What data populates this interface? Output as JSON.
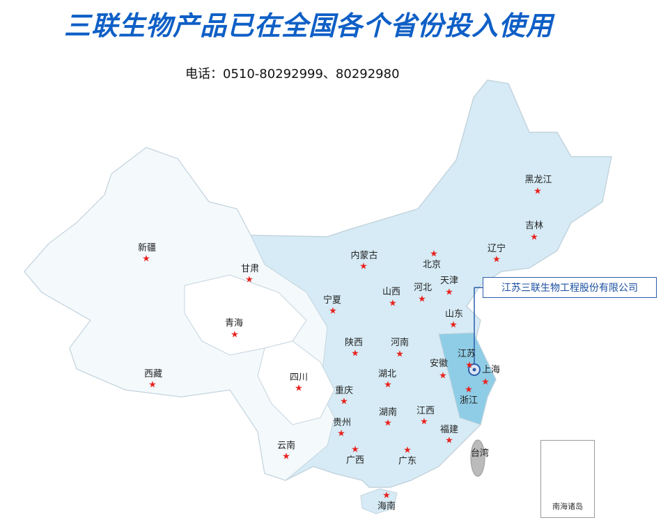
{
  "title": "三联生物产品已在全国各个省份投入使用",
  "phone": "电话：0510-80292999、80292980",
  "callout": "江苏三联生物工程股份有限公司",
  "inset_label": "南海诸岛",
  "colors": {
    "title": "#0f5fc6",
    "star": "#e8231f",
    "map_fill": "#d6ebf5",
    "highlight": "#8fcde6",
    "callout_border": "#2a5caa"
  },
  "marker_icon": "star-icon",
  "provinces": [
    "新疆",
    "西藏",
    "青海",
    "甘肃",
    "宁夏",
    "内蒙古",
    "陕西",
    "山西",
    "河北",
    "北京",
    "天津",
    "辽宁",
    "吉林",
    "黑龙江",
    "山东",
    "河南",
    "江苏",
    "安徽",
    "上海",
    "浙江",
    "湖北",
    "四川",
    "重庆",
    "湖南",
    "江西",
    "福建",
    "贵州",
    "云南",
    "广西",
    "广东",
    "台湾",
    "海南"
  ]
}
